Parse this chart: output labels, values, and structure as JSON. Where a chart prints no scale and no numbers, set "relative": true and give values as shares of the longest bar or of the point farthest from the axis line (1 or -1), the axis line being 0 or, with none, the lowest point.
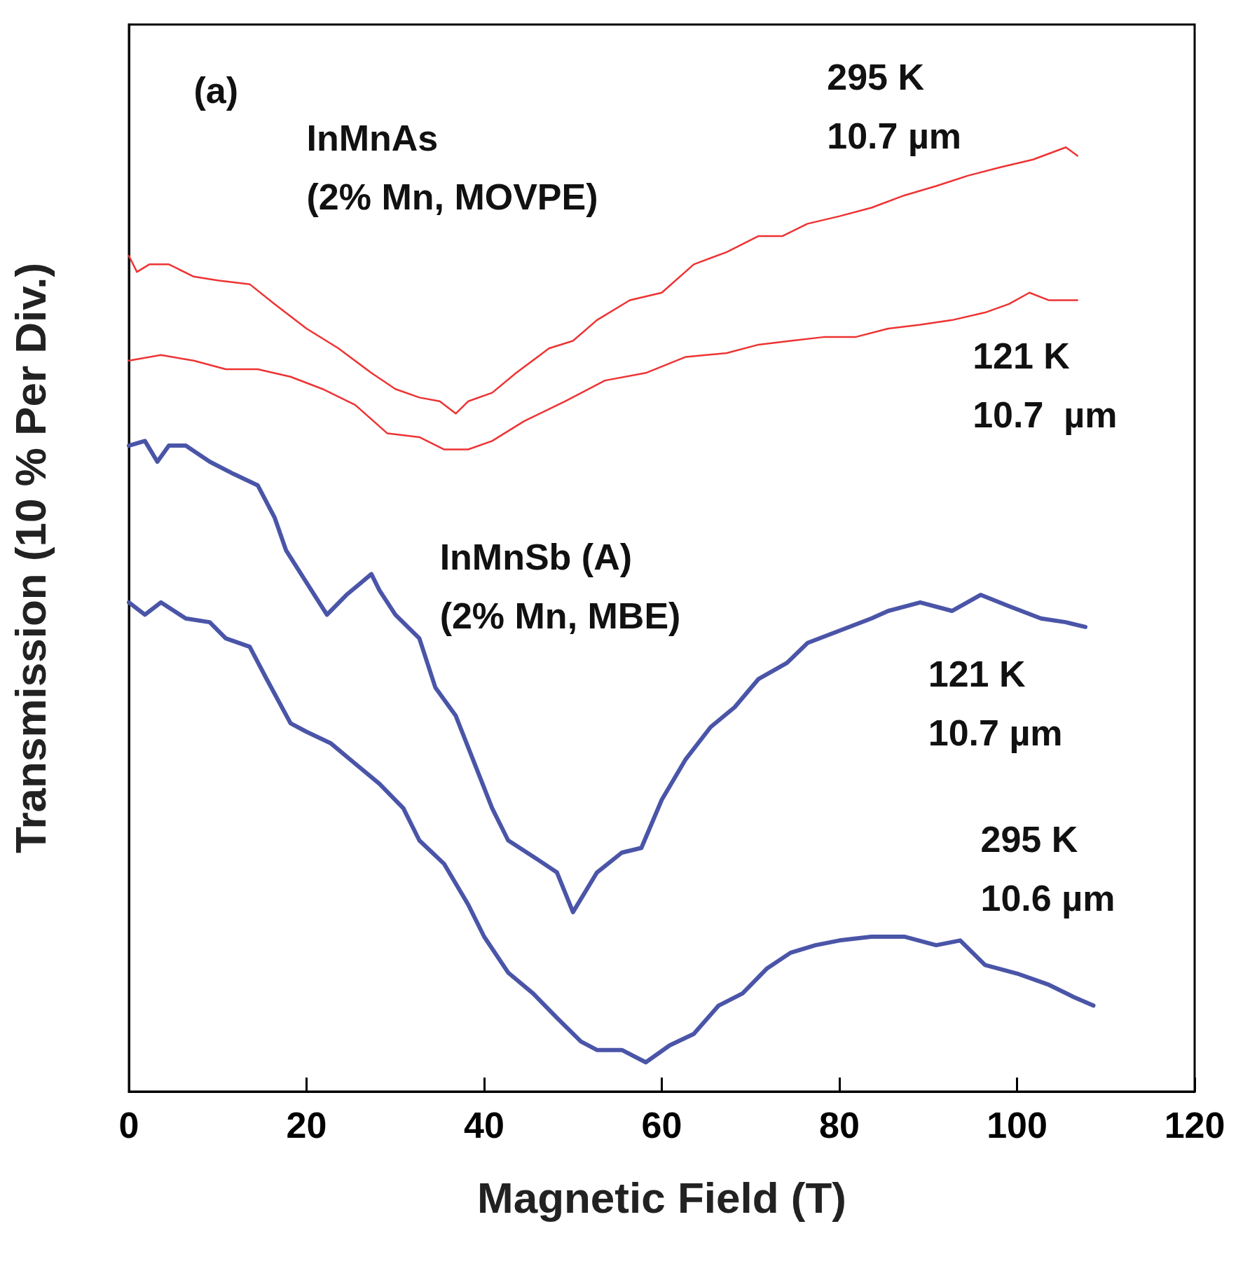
{
  "chart_data": {
    "type": "line",
    "xlabel": "Magnetic Field (T)",
    "ylabel": "Transmission (10 % Per Div.)",
    "relative": true,
    "xlim": [
      0,
      120
    ],
    "xticks": [
      0,
      20,
      40,
      60,
      80,
      100,
      120
    ],
    "grid": false,
    "marker": "none",
    "line_style": "solid",
    "series": [
      {
        "color": "#ee3333",
        "x": [
          0,
          0.9,
          2.3,
          4.5,
          7.3,
          10,
          13.6,
          16.4,
          20,
          23.6,
          27.3,
          30,
          32.7,
          35,
          36.8,
          38.2,
          40.9,
          43.6,
          47.3,
          50,
          52.7,
          56.4,
          60,
          63.6,
          67.3,
          70.9,
          73.6,
          76.4,
          80,
          83.6,
          87.3,
          90.9,
          94.5,
          98.2,
          101.8,
          105.5,
          106.8
        ],
        "values": [
          0.885,
          0.868,
          0.876,
          0.876,
          0.863,
          0.859,
          0.855,
          0.834,
          0.808,
          0.787,
          0.761,
          0.744,
          0.735,
          0.731,
          0.718,
          0.731,
          0.74,
          0.761,
          0.787,
          0.795,
          0.817,
          0.838,
          0.846,
          0.876,
          0.889,
          0.906,
          0.906,
          0.919,
          0.927,
          0.936,
          0.949,
          0.959,
          0.97,
          0.979,
          0.987,
          1.0,
          0.991
        ]
      },
      {
        "color": "#ee3333",
        "x": [
          0,
          3.6,
          7.3,
          10.9,
          14.5,
          18.2,
          21.8,
          25.5,
          29.1,
          32.7,
          35.5,
          38.2,
          40.9,
          44.5,
          49.1,
          53.6,
          58.2,
          62.7,
          67.3,
          70.9,
          74.5,
          78.2,
          81.8,
          85.5,
          89.1,
          92.7,
          96.4,
          99.1,
          101.4,
          103.6,
          106.8
        ],
        "values": [
          0.774,
          0.78,
          0.774,
          0.765,
          0.765,
          0.757,
          0.744,
          0.727,
          0.697,
          0.693,
          0.68,
          0.68,
          0.689,
          0.71,
          0.731,
          0.753,
          0.761,
          0.778,
          0.782,
          0.791,
          0.795,
          0.799,
          0.799,
          0.808,
          0.812,
          0.817,
          0.825,
          0.834,
          0.846,
          0.838,
          0.838
        ]
      },
      {
        "color": "#4a55a8",
        "x": [
          0,
          1.8,
          3.2,
          4.5,
          6.4,
          9.1,
          11.8,
          14.5,
          16.4,
          17.7,
          20,
          22.3,
          24.5,
          27.3,
          28.2,
          30,
          32.7,
          34.5,
          36.8,
          39.1,
          40.9,
          42.7,
          45.5,
          48.2,
          50,
          52.7,
          55.5,
          57.7,
          60,
          62.7,
          65.5,
          68.2,
          70.9,
          74.1,
          76.4,
          80,
          83.6,
          85.5,
          89.1,
          92.7,
          95.9,
          99.1,
          102.7,
          105.5,
          107.7
        ],
        "values": [
          0.684,
          0.689,
          0.667,
          0.684,
          0.684,
          0.667,
          0.654,
          0.642,
          0.608,
          0.573,
          0.539,
          0.505,
          0.526,
          0.548,
          0.531,
          0.505,
          0.48,
          0.428,
          0.398,
          0.343,
          0.3,
          0.266,
          0.249,
          0.232,
          0.19,
          0.232,
          0.253,
          0.258,
          0.309,
          0.352,
          0.386,
          0.407,
          0.437,
          0.454,
          0.475,
          0.488,
          0.501,
          0.509,
          0.518,
          0.509,
          0.526,
          0.514,
          0.501,
          0.497,
          0.492
        ]
      },
      {
        "color": "#4a55a8",
        "x": [
          0,
          1.8,
          3.6,
          6.4,
          9.1,
          10.9,
          13.6,
          15.5,
          18.2,
          20,
          22.7,
          25.5,
          28.2,
          30.9,
          32.7,
          35.5,
          38.2,
          40,
          42.7,
          45.5,
          48.2,
          50.9,
          52.7,
          55.5,
          58.2,
          60.9,
          63.6,
          66.4,
          69.1,
          71.8,
          74.5,
          77.3,
          80,
          83.6,
          87.3,
          90.9,
          93.6,
          96.4,
          100,
          103.6,
          106.4,
          108.6
        ],
        "values": [
          0.518,
          0.505,
          0.518,
          0.501,
          0.497,
          0.48,
          0.471,
          0.437,
          0.39,
          0.381,
          0.369,
          0.347,
          0.326,
          0.3,
          0.266,
          0.241,
          0.198,
          0.164,
          0.126,
          0.104,
          0.078,
          0.053,
          0.044,
          0.044,
          0.031,
          0.049,
          0.061,
          0.091,
          0.104,
          0.13,
          0.147,
          0.155,
          0.16,
          0.164,
          0.164,
          0.155,
          0.16,
          0.134,
          0.125,
          0.113,
          0.1,
          0.091
        ]
      }
    ],
    "annotations": [
      "(a)",
      "InMnAs\n(2% Mn, MOVPE)",
      "295 K\n10.7 µm",
      "121 K\n10.7  µm",
      "InMnSb (A)\n(2% Mn, MBE)",
      "121 K\n10.7 µm",
      "295 K\n10.6 µm"
    ]
  }
}
